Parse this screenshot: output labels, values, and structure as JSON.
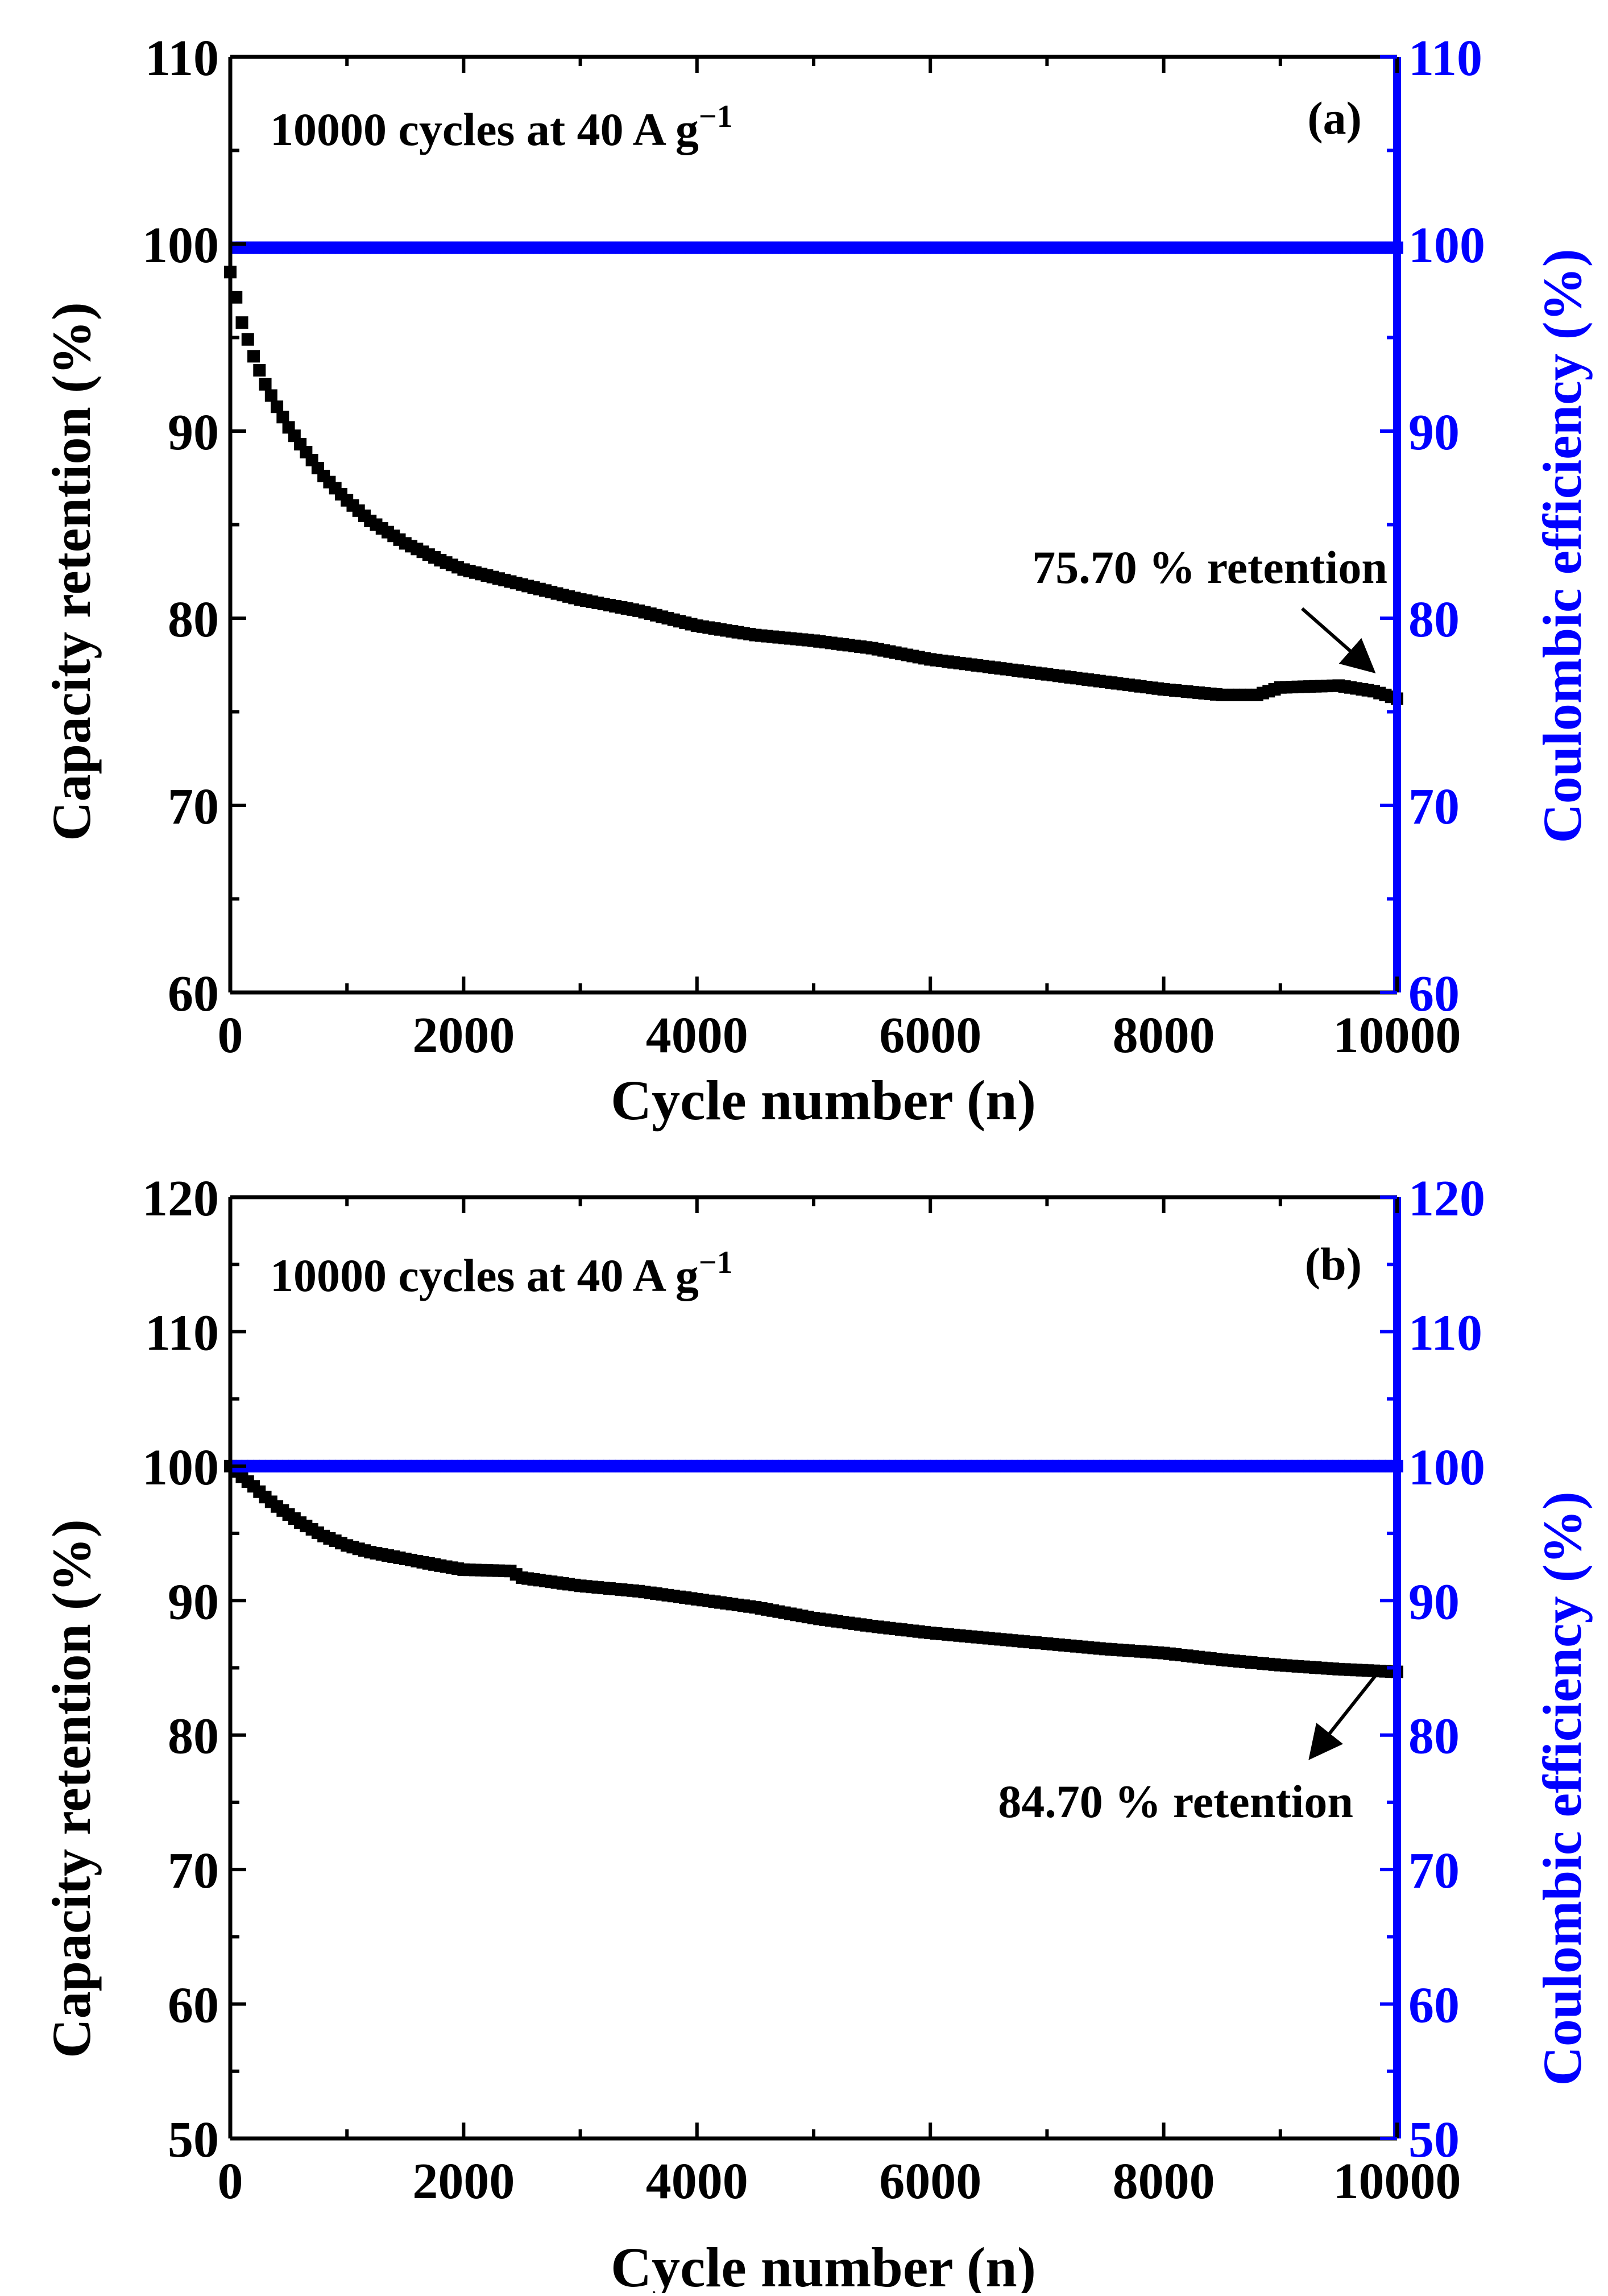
{
  "figure": {
    "panels": [
      {
        "panel_label": "(a)",
        "annotation_title": "10000 cycles at 40 A g",
        "annotation_title_sup": "−1",
        "retention_label": "75.70 % retention",
        "xlabel": "Cycle number (n)",
        "ylabel_left": "Capacity retention (%)",
        "ylabel_right": "Coulombic efficiency (%)"
      },
      {
        "panel_label": "(b)",
        "annotation_title": "10000 cycles at 40 A g",
        "annotation_title_sup": "−1",
        "retention_label": "84.70 % retention",
        "xlabel": "Cycle number (n)",
        "ylabel_left": "Capacity retention (%)",
        "ylabel_right": "Coulombic efficiency (%)"
      }
    ]
  },
  "colors": {
    "retention": "#000000",
    "efficiency": "#0000ff",
    "axis": "#000000"
  },
  "chart_data": [
    {
      "type": "scatter",
      "title": "10000 cycles at 40 A g−1",
      "panel": "(a)",
      "xlabel": "Cycle number (n)",
      "ylabel": "Capacity retention (%)",
      "y2label": "Coulombic efficiency (%)",
      "xlim": [
        0,
        10000
      ],
      "ylim": [
        60,
        110
      ],
      "y2lim": [
        60,
        110
      ],
      "xticks": [
        0,
        2000,
        4000,
        6000,
        8000,
        10000
      ],
      "yticks": [
        60,
        70,
        80,
        90,
        100,
        110
      ],
      "y2ticks": [
        60,
        70,
        80,
        90,
        100,
        110
      ],
      "annotation": "75.70 % retention",
      "series": [
        {
          "name": "Capacity retention",
          "axis": "left",
          "x": [
            0,
            100,
            200,
            300,
            400,
            500,
            600,
            800,
            1000,
            1200,
            1500,
            1800,
            2000,
            2500,
            3000,
            3500,
            4000,
            4500,
            5000,
            5500,
            6000,
            6500,
            7000,
            7500,
            8000,
            8500,
            8800,
            9000,
            9500,
            9800,
            10000
          ],
          "values": [
            98.5,
            95.8,
            94.0,
            92.5,
            91.3,
            90.2,
            89.3,
            87.6,
            86.3,
            85.2,
            84.0,
            83.1,
            82.6,
            81.8,
            81.0,
            80.4,
            79.6,
            79.1,
            78.8,
            78.4,
            77.8,
            77.4,
            77.0,
            76.6,
            76.2,
            75.9,
            75.9,
            76.3,
            76.4,
            76.1,
            75.7
          ]
        },
        {
          "name": "Coulombic efficiency",
          "axis": "right",
          "x": [
            0,
            100,
            2000,
            4000,
            6000,
            8000,
            10000
          ],
          "values": [
            99.8,
            99.8,
            99.8,
            99.8,
            99.8,
            99.8,
            99.8
          ]
        }
      ]
    },
    {
      "type": "scatter",
      "title": "10000 cycles at 40 A g−1",
      "panel": "(b)",
      "xlabel": "Cycle number (n)",
      "ylabel": "Capacity retention (%)",
      "y2label": "Coulombic efficiency (%)",
      "xlim": [
        0,
        10000
      ],
      "ylim": [
        50,
        120
      ],
      "y2lim": [
        50,
        120
      ],
      "xticks": [
        0,
        2000,
        4000,
        6000,
        8000,
        10000
      ],
      "yticks": [
        50,
        60,
        70,
        80,
        90,
        100,
        110,
        120
      ],
      "y2ticks": [
        50,
        60,
        70,
        80,
        90,
        100,
        110,
        120
      ],
      "annotation": "84.70 % retention",
      "series": [
        {
          "name": "Capacity retention",
          "axis": "left",
          "x": [
            0,
            100,
            200,
            300,
            400,
            600,
            800,
            1000,
            1200,
            1500,
            1800,
            2000,
            2400,
            2500,
            3000,
            3500,
            4000,
            4500,
            5000,
            5500,
            6000,
            6500,
            7000,
            7500,
            8000,
            8500,
            9000,
            9500,
            10000
          ],
          "values": [
            100.0,
            99.2,
            98.5,
            97.7,
            97.0,
            95.8,
            94.8,
            94.1,
            93.6,
            93.1,
            92.6,
            92.3,
            92.2,
            91.7,
            91.1,
            90.7,
            90.1,
            89.5,
            88.7,
            88.1,
            87.6,
            87.2,
            86.8,
            86.4,
            86.1,
            85.6,
            85.2,
            84.9,
            84.7
          ]
        },
        {
          "name": "Coulombic efficiency",
          "axis": "right",
          "x": [
            0,
            100,
            2000,
            4000,
            6000,
            8000,
            10000
          ],
          "values": [
            100.0,
            100.0,
            100.0,
            100.0,
            100.0,
            100.0,
            100.0
          ]
        }
      ]
    }
  ]
}
